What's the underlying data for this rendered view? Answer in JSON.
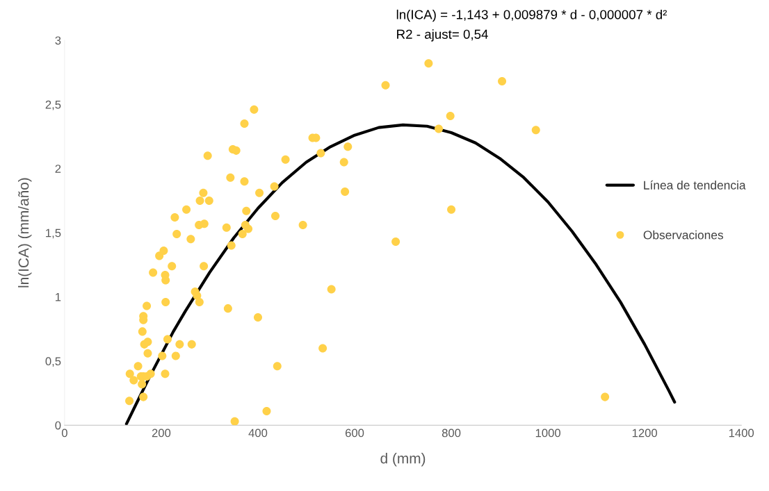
{
  "chart_data": {
    "type": "scatter",
    "xlabel": "d (mm)",
    "ylabel": "ln(ICA) (mm/año)",
    "annotations": [
      "ln(ICA) = -1,143 + 0,009879 * d - 0,000007 * d²",
      "R2 - ajust= 0,54"
    ],
    "xlim": [
      0,
      1400
    ],
    "xticks": [
      0,
      200,
      400,
      600,
      800,
      1000,
      1200,
      1400
    ],
    "ylim": [
      0,
      3
    ],
    "yticks": [
      0,
      {
        "value": 0.5,
        "label": "0,5"
      },
      1,
      {
        "value": 1.5,
        "label": "1,5"
      },
      2,
      {
        "value": 2.5,
        "label": "2,5"
      },
      3
    ],
    "grid": false,
    "legend": "right",
    "series": [
      {
        "name": "Línea de tendencia",
        "type": "line",
        "color": "#000000",
        "marker": "none",
        "line_style": "solid",
        "x": [
          128,
          150,
          175,
          200,
          225,
          250,
          300,
          350,
          400,
          450,
          500,
          550,
          600,
          650,
          700,
          750,
          800,
          850,
          900,
          950,
          1000,
          1050,
          1100,
          1150,
          1200,
          1250,
          1262
        ],
        "values": [
          0.01,
          0.18,
          0.37,
          0.55,
          0.73,
          0.89,
          1.19,
          1.46,
          1.69,
          1.89,
          2.05,
          2.17,
          2.26,
          2.32,
          2.34,
          2.33,
          2.28,
          2.2,
          2.08,
          1.93,
          1.74,
          1.51,
          1.25,
          0.96,
          0.63,
          0.27,
          0.18
        ]
      },
      {
        "name": "Observaciones",
        "color": "#ffd149",
        "marker": "circle",
        "x": [
          135,
          134,
          143,
          152,
          158,
          160,
          163,
          163,
          165,
          161,
          163,
          163,
          170,
          170,
          172,
          172,
          178,
          183,
          196,
          202,
          205,
          208,
          209,
          209,
          208,
          213,
          222,
          228,
          230,
          232,
          238,
          252,
          261,
          263,
          270,
          274,
          279,
          278,
          280,
          287,
          288,
          289,
          296,
          299,
          335,
          338,
          343,
          345,
          348,
          355,
          352,
          368,
          372,
          372,
          374,
          376,
          380,
          392,
          400,
          403,
          418,
          434,
          436,
          440,
          457,
          493,
          513,
          520,
          530,
          534,
          552,
          578,
          580,
          586,
          664,
          685,
          753,
          774,
          798,
          800,
          905,
          975,
          1118
        ],
        "values": [
          0.4,
          0.19,
          0.35,
          0.46,
          0.38,
          0.32,
          0.22,
          0.38,
          0.63,
          0.73,
          0.82,
          0.85,
          0.93,
          0.38,
          0.65,
          0.56,
          0.4,
          1.19,
          1.32,
          0.54,
          1.36,
          1.17,
          1.13,
          0.96,
          0.4,
          0.67,
          1.24,
          1.62,
          0.54,
          1.49,
          0.63,
          1.68,
          1.45,
          0.63,
          1.04,
          1.01,
          0.96,
          1.56,
          1.75,
          1.81,
          1.24,
          1.57,
          2.1,
          1.75,
          1.54,
          0.91,
          1.93,
          1.4,
          2.15,
          2.14,
          0.03,
          1.49,
          1.9,
          2.35,
          1.56,
          1.67,
          1.53,
          2.46,
          0.84,
          1.81,
          0.11,
          1.86,
          1.63,
          0.46,
          2.07,
          1.56,
          2.24,
          2.24,
          2.12,
          0.6,
          1.06,
          2.05,
          1.82,
          2.17,
          2.65,
          1.43,
          2.82,
          2.31,
          2.41,
          1.68,
          2.68,
          2.3,
          0.22
        ]
      }
    ]
  }
}
